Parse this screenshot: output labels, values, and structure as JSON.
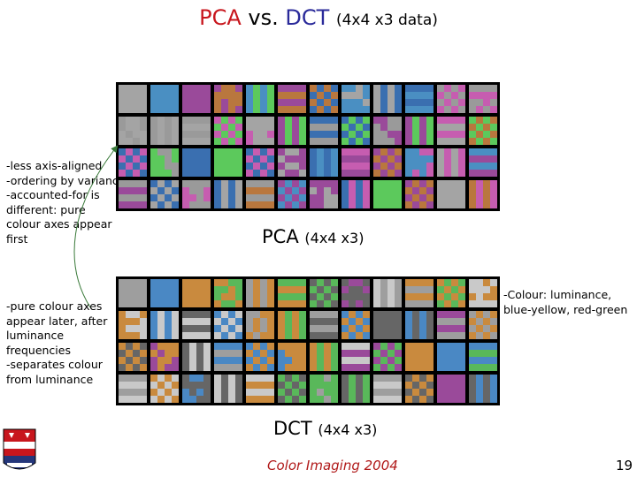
{
  "title": {
    "pca": "PCA",
    "vs": "vs.",
    "dct": "DCT",
    "detail": "(4x4  x3 data)",
    "colors": {
      "pca": "#c8161d",
      "dct": "#2a2a9a"
    }
  },
  "notes": {
    "pca_left": "-less axis-aligned\n-ordering by variance\n-accounted-for is\ndifferent: pure\ncolour axes appear\nfirst",
    "dct_left": "-pure colour axes\nappear later, after\nluminance\nfrequencies\n-separates colour\nfrom luminance",
    "dct_right": "-Colour: luminance,\nblue-yellow, red-green"
  },
  "labels": {
    "pca_main": "PCA",
    "pca_detail": "(4x4  x3)",
    "dct_main": "DCT",
    "dct_detail": "(4x4 x3)"
  },
  "footer": {
    "course": "Color Imaging 2004",
    "page": "19"
  },
  "palette": {
    "pca": [
      "#a4a4a4",
      "#4a8fc2",
      "#9a4a9a",
      "#5cc95c",
      "#b9773e",
      "#3a6fb0",
      "#c65db0",
      "#9a9a9a"
    ],
    "dct": [
      "#9e9e9e",
      "#4a88c4",
      "#c98a3e",
      "#59b85a",
      "#9a4a9a",
      "#c9c9c9",
      "#666666"
    ]
  }
}
